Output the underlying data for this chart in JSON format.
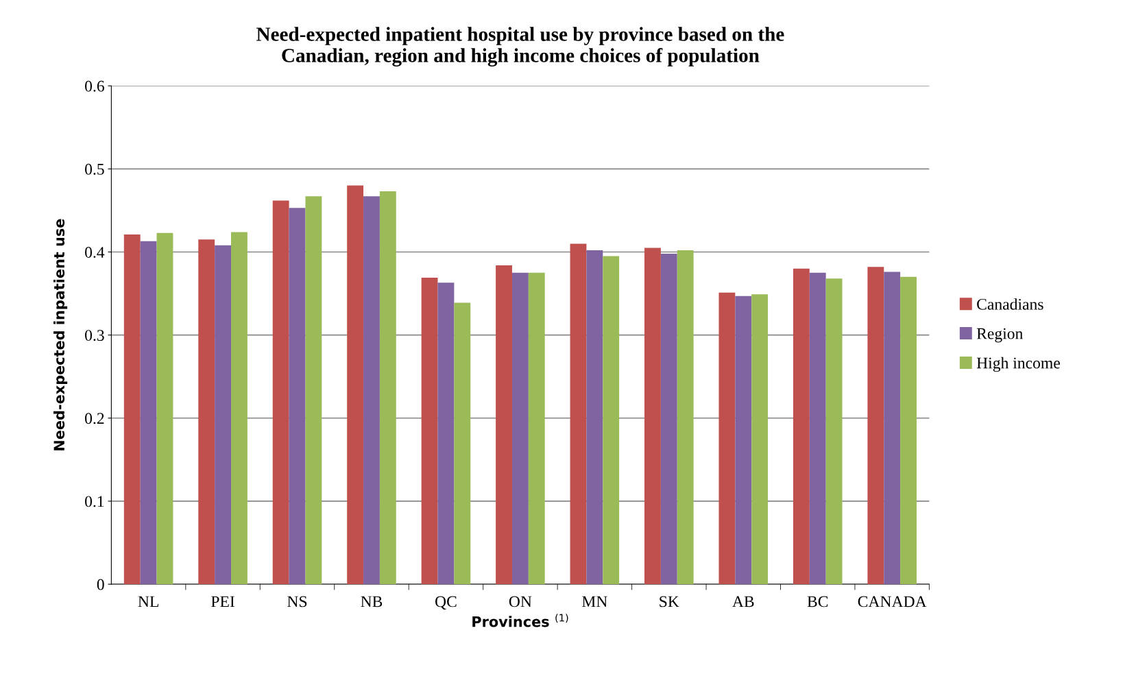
{
  "chart_data": {
    "type": "bar",
    "title": "Need-expected inpatient hospital use by province based on the\nCanadian, region and high income choices of population",
    "xlabel": "Provinces $^{(1)}$",
    "ylabel": "Need-expected inpatient use",
    "categories": [
      "NL",
      "PEI",
      "NS",
      "NB",
      "QC",
      "ON",
      "MN",
      "SK",
      "AB",
      "BC",
      "CANADA"
    ],
    "series": [
      {
        "name": "Canadians",
        "color": "#c0504d",
        "values": [
          0.421,
          0.415,
          0.462,
          0.48,
          0.369,
          0.384,
          0.41,
          0.405,
          0.351,
          0.38,
          0.382
        ]
      },
      {
        "name": "Region",
        "color": "#8064a2",
        "values": [
          0.413,
          0.408,
          0.453,
          0.467,
          0.363,
          0.375,
          0.402,
          0.398,
          0.347,
          0.375,
          0.376
        ]
      },
      {
        "name": "High income",
        "color": "#9bbb59",
        "values": [
          0.423,
          0.424,
          0.467,
          0.473,
          0.339,
          0.375,
          0.395,
          0.402,
          0.349,
          0.368,
          0.37
        ]
      }
    ],
    "ylim": [
      0,
      0.6
    ],
    "yticks": [
      0,
      0.1,
      0.2,
      0.3,
      0.4,
      0.5,
      0.6
    ],
    "grid": "y",
    "legend": "right"
  }
}
